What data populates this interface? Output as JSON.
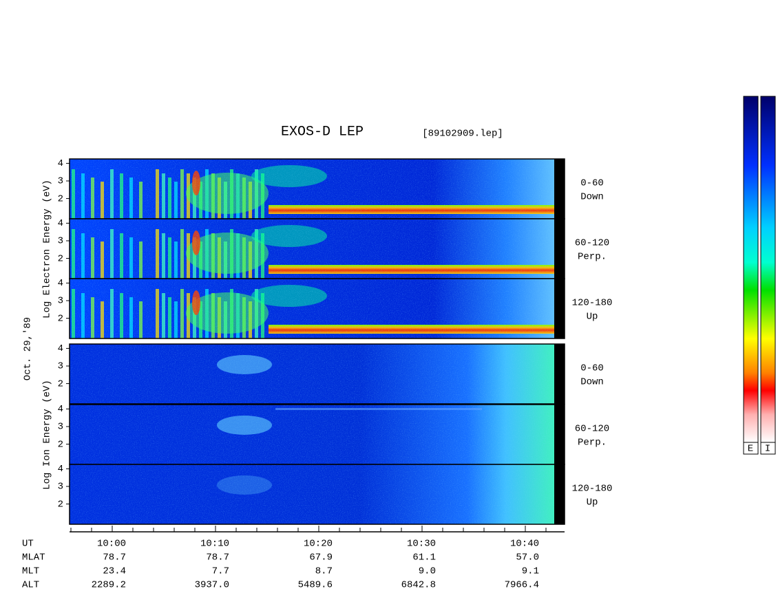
{
  "title": "EXOS-D LEP",
  "file": "[89102909.lep]",
  "date": "Oct. 29,'89",
  "groups": [
    {
      "ylabel": "Log  Electron  Energy  (eV)",
      "panels": [
        {
          "range": "0-60",
          "direction": "Down"
        },
        {
          "range": "60-120",
          "direction": "Perp."
        },
        {
          "range": "120-180",
          "direction": "Up"
        }
      ]
    },
    {
      "ylabel": "Log  Ion  Energy  (eV)",
      "panels": [
        {
          "range": "0-60",
          "direction": "Down"
        },
        {
          "range": "60-120",
          "direction": "Perp."
        },
        {
          "range": "120-180",
          "direction": "Up"
        }
      ]
    }
  ],
  "yticks": [
    2,
    3,
    4
  ],
  "ylim": [
    0.85,
    4.25
  ],
  "ephemeris": {
    "labels": [
      "UT",
      "MLAT",
      "MLT",
      "ALT"
    ],
    "columns": [
      [
        "10:00",
        "78.7",
        "23.4",
        "2289.2"
      ],
      [
        "10:10",
        "78.7",
        "7.7",
        "3937.0"
      ],
      [
        "10:20",
        "67.9",
        "8.7",
        "5489.6"
      ],
      [
        "10:30",
        "61.1",
        "9.0",
        "6842.8"
      ],
      [
        "10:40",
        "57.0",
        "9.1",
        "7966.4"
      ]
    ]
  },
  "colorbars": [
    "E",
    "I"
  ]
}
